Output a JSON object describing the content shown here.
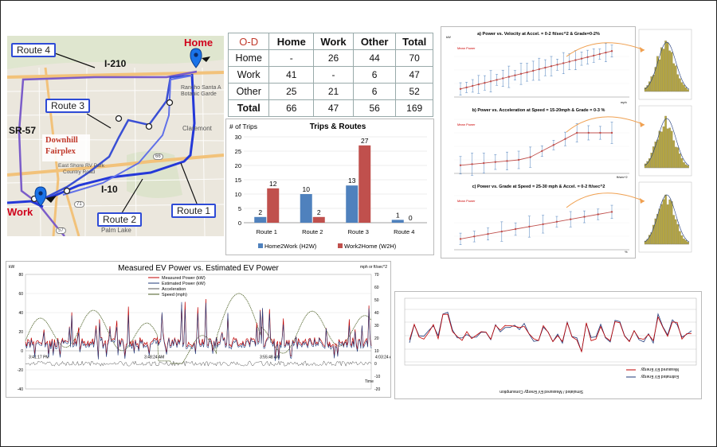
{
  "map": {
    "labels": {
      "home": "Home",
      "work": "Work",
      "route1": "Route 1",
      "route2": "Route 2",
      "route3": "Route 3",
      "route4": "Route 4",
      "i210": "I-210",
      "i10": "I-10",
      "sr57": "SR-57",
      "fairplex_1": "Downhill",
      "fairplex_2": "Fairplex",
      "claremont": "Claremont",
      "rancho_1": "Rancho Santa A",
      "rancho_2": "Botanic Garde",
      "palm_lake": "Palm Lake",
      "east_shore_1": "East Shore RV Park",
      "east_shore_2": "Country Road",
      "road_57": "57",
      "road_71": "71",
      "road_66": "66"
    }
  },
  "od_table": {
    "corner": "O-D",
    "columns": [
      "Home",
      "Work",
      "Other",
      "Total"
    ],
    "rows": [
      {
        "label": "Home",
        "cells": [
          "-",
          "26",
          "44",
          "70"
        ]
      },
      {
        "label": "Work",
        "cells": [
          "41",
          "-",
          "6",
          "47"
        ]
      },
      {
        "label": "Other",
        "cells": [
          "25",
          "21",
          "6",
          "52"
        ]
      },
      {
        "label": "Total",
        "cells": [
          "66",
          "47",
          "56",
          "169"
        ]
      }
    ]
  },
  "chart_data": [
    {
      "type": "bar",
      "title": "Trips & Routes",
      "ylabel": "# of Trips",
      "categories": [
        "Route 1",
        "Route 2",
        "Route 3",
        "Route 4"
      ],
      "series": [
        {
          "name": "Home2Work (H2W)",
          "values": [
            2,
            10,
            13,
            1
          ],
          "color": "#4f81bd"
        },
        {
          "name": "Work2Home (W2H)",
          "values": [
            12,
            2,
            27,
            0
          ],
          "color": "#c0504d"
        }
      ],
      "ylim": [
        0,
        30
      ],
      "yticks": [
        0,
        5,
        10,
        15,
        20,
        25,
        30
      ],
      "legend": "bottom"
    },
    {
      "type": "line",
      "title": "Measured EV Power vs. Estimated EV Power",
      "ylabel_left": "kW",
      "ylabel_right": "mph or ft/sec^2",
      "xlabel": "Time",
      "series": [
        {
          "name": "Measured Power (kW)",
          "color": "#c00000"
        },
        {
          "name": "Estimated Power (kW)",
          "color": "#1f3a7a"
        },
        {
          "name": "Acceleration",
          "color": "#555555"
        },
        {
          "name": "Speed (mph)",
          "color": "#4f6228"
        }
      ],
      "yticks_left": [
        -40,
        -20,
        0,
        20,
        40,
        60,
        80
      ],
      "yticks_right": [
        -20,
        -10,
        0,
        10,
        20,
        30,
        40,
        50,
        60,
        70
      ],
      "time_labels": [
        "3:41:17 PM",
        "3:48:24 AM",
        "3:55:48 AM",
        "4:03:24 AM"
      ],
      "legend": "top-center"
    },
    {
      "type": "line",
      "title": "a) Power vs. Velocity at Accel. = 0-2 ft/sec^2 & Grade=0-2%",
      "series": [
        {
          "name": "Mean Power"
        }
      ],
      "ylabel": "kW",
      "xlabel": "mph"
    },
    {
      "type": "line",
      "title": "b) Power vs. Acceleration at Speed = 15-20mph & Grade = 0-3 %",
      "series": [
        {
          "name": "Mean Power"
        }
      ],
      "xlabel": "ft/sec^2"
    },
    {
      "type": "line",
      "title": "c) Power vs. Grade at Speed = 25-30 mph & Accel. = 0-2 ft/sec^2",
      "series": [
        {
          "name": "Mean Power"
        }
      ],
      "xlabel": "%"
    },
    {
      "type": "line",
      "title": "Simulated / Measured EV Energy Consumption",
      "series": [
        {
          "name": "Measured EV Energy",
          "color": "#c00000"
        },
        {
          "name": "Estimated EV Energy",
          "color": "#1f3a7a"
        }
      ],
      "legend": "bottom-right"
    }
  ]
}
